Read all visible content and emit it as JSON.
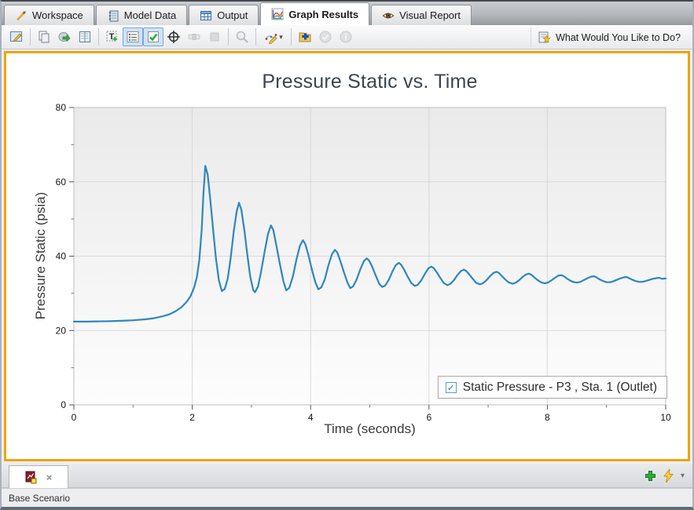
{
  "tabs": [
    {
      "label": "Workspace",
      "icon": "workspace-icon",
      "active": false
    },
    {
      "label": "Model Data",
      "icon": "model-data-icon",
      "active": false
    },
    {
      "label": "Output",
      "icon": "output-icon",
      "active": false
    },
    {
      "label": "Graph Results",
      "icon": "graph-results-icon",
      "active": true
    },
    {
      "label": "Visual Report",
      "icon": "visual-report-icon",
      "active": false
    }
  ],
  "toolbar": {
    "help_label": "What Would You Like to Do?",
    "icons": [
      {
        "name": "edit-graph-parameters-icon",
        "state": "normal"
      },
      {
        "name": "copy-icon",
        "state": "normal"
      },
      {
        "name": "export-data-icon",
        "state": "normal"
      },
      {
        "name": "report-columns-icon",
        "state": "normal"
      },
      {
        "name": "add-text-annotation-icon",
        "state": "normal"
      },
      {
        "name": "show-legend-icon",
        "state": "selected"
      },
      {
        "name": "show-checkboxes-icon",
        "state": "selected"
      },
      {
        "name": "crosshair-icon",
        "state": "normal"
      },
      {
        "name": "slider-icon",
        "state": "disabled"
      },
      {
        "name": "stop-icon",
        "state": "disabled"
      },
      {
        "name": "zoom-icon",
        "state": "disabled"
      },
      {
        "name": "format-curve-icon",
        "state": "normal"
      },
      {
        "name": "add-to-folder-icon",
        "state": "normal"
      },
      {
        "name": "accept-icon",
        "state": "disabled"
      },
      {
        "name": "info-icon",
        "state": "disabled"
      }
    ]
  },
  "chart_data": {
    "type": "line",
    "title": "Pressure Static vs. Time",
    "xlabel": "Time (seconds)",
    "ylabel": "Pressure Static (psia)",
    "xlim": [
      0,
      10
    ],
    "ylim": [
      0,
      80
    ],
    "xticks": [
      0,
      2,
      4,
      6,
      8,
      10
    ],
    "xminor": [
      1,
      3,
      5,
      7,
      9
    ],
    "yticks": [
      0,
      20,
      40,
      60,
      80
    ],
    "yminor": [
      10,
      30,
      50,
      70
    ],
    "xgrid": [
      2,
      4,
      6,
      8
    ],
    "ygrid": [
      20,
      40,
      60
    ],
    "grid_on": true,
    "legend_position": "bottom-right",
    "colors": {
      "line": "#2e86be",
      "grid": "#d9d9d9",
      "frame": "#bfbfbf",
      "accent_border": "#f0a30c"
    },
    "series": [
      {
        "name": "Static Pressure - P3 , Sta. 1 (Outlet)",
        "checked": true,
        "points": [
          [
            0,
            22.4
          ],
          [
            0.2,
            22.4
          ],
          [
            0.4,
            22.45
          ],
          [
            0.6,
            22.5
          ],
          [
            0.8,
            22.6
          ],
          [
            1.0,
            22.75
          ],
          [
            1.2,
            23.0
          ],
          [
            1.35,
            23.3
          ],
          [
            1.5,
            23.8
          ],
          [
            1.62,
            24.4
          ],
          [
            1.72,
            25.2
          ],
          [
            1.82,
            26.3
          ],
          [
            1.9,
            27.6
          ],
          [
            1.97,
            29.2
          ],
          [
            2.03,
            31.5
          ],
          [
            2.08,
            34.5
          ],
          [
            2.12,
            39.0
          ],
          [
            2.16,
            47.0
          ],
          [
            2.19,
            57.0
          ],
          [
            2.22,
            64.3
          ],
          [
            2.26,
            62.0
          ],
          [
            2.3,
            56.0
          ],
          [
            2.35,
            47.5
          ],
          [
            2.4,
            39.5
          ],
          [
            2.45,
            33.5
          ],
          [
            2.5,
            30.6
          ],
          [
            2.55,
            31.2
          ],
          [
            2.6,
            34.0
          ],
          [
            2.65,
            39.5
          ],
          [
            2.7,
            46.5
          ],
          [
            2.75,
            52.0
          ],
          [
            2.79,
            54.4
          ],
          [
            2.83,
            52.5
          ],
          [
            2.88,
            47.0
          ],
          [
            2.93,
            40.5
          ],
          [
            2.98,
            34.5
          ],
          [
            3.03,
            30.9
          ],
          [
            3.06,
            30.3
          ],
          [
            3.11,
            31.8
          ],
          [
            3.16,
            35.5
          ],
          [
            3.22,
            41.0
          ],
          [
            3.28,
            46.0
          ],
          [
            3.33,
            48.3
          ],
          [
            3.37,
            47.0
          ],
          [
            3.42,
            43.0
          ],
          [
            3.48,
            38.0
          ],
          [
            3.54,
            33.2
          ],
          [
            3.59,
            30.8
          ],
          [
            3.64,
            31.5
          ],
          [
            3.7,
            34.5
          ],
          [
            3.76,
            39.0
          ],
          [
            3.82,
            42.8
          ],
          [
            3.87,
            44.3
          ],
          [
            3.91,
            43.3
          ],
          [
            3.96,
            40.5
          ],
          [
            4.02,
            36.5
          ],
          [
            4.08,
            33.0
          ],
          [
            4.13,
            31.1
          ],
          [
            4.18,
            31.6
          ],
          [
            4.24,
            33.8
          ],
          [
            4.3,
            37.5
          ],
          [
            4.36,
            40.5
          ],
          [
            4.41,
            41.7
          ],
          [
            4.45,
            41.0
          ],
          [
            4.5,
            38.8
          ],
          [
            4.56,
            35.8
          ],
          [
            4.62,
            33.0
          ],
          [
            4.67,
            31.4
          ],
          [
            4.72,
            31.9
          ],
          [
            4.78,
            33.8
          ],
          [
            4.84,
            36.5
          ],
          [
            4.9,
            38.7
          ],
          [
            4.95,
            39.4
          ],
          [
            4.99,
            38.8
          ],
          [
            5.04,
            37.2
          ],
          [
            5.1,
            34.8
          ],
          [
            5.16,
            32.6
          ],
          [
            5.21,
            31.7
          ],
          [
            5.26,
            32.1
          ],
          [
            5.32,
            33.6
          ],
          [
            5.38,
            35.8
          ],
          [
            5.44,
            37.6
          ],
          [
            5.49,
            38.2
          ],
          [
            5.53,
            37.7
          ],
          [
            5.58,
            36.4
          ],
          [
            5.64,
            34.5
          ],
          [
            5.7,
            32.8
          ],
          [
            5.76,
            32.0
          ],
          [
            5.81,
            32.3
          ],
          [
            5.87,
            33.5
          ],
          [
            5.93,
            35.2
          ],
          [
            5.99,
            36.7
          ],
          [
            6.04,
            37.2
          ],
          [
            6.08,
            36.8
          ],
          [
            6.13,
            35.7
          ],
          [
            6.19,
            34.2
          ],
          [
            6.25,
            32.8
          ],
          [
            6.31,
            32.2
          ],
          [
            6.36,
            32.5
          ],
          [
            6.42,
            33.5
          ],
          [
            6.48,
            34.9
          ],
          [
            6.54,
            36.0
          ],
          [
            6.59,
            36.4
          ],
          [
            6.63,
            36.0
          ],
          [
            6.68,
            35.1
          ],
          [
            6.74,
            33.9
          ],
          [
            6.8,
            32.8
          ],
          [
            6.86,
            32.4
          ],
          [
            6.91,
            32.7
          ],
          [
            6.97,
            33.5
          ],
          [
            7.03,
            34.6
          ],
          [
            7.09,
            35.5
          ],
          [
            7.14,
            35.8
          ],
          [
            7.18,
            35.5
          ],
          [
            7.23,
            34.7
          ],
          [
            7.29,
            33.7
          ],
          [
            7.35,
            32.9
          ],
          [
            7.41,
            32.6
          ],
          [
            7.46,
            32.8
          ],
          [
            7.52,
            33.5
          ],
          [
            7.58,
            34.4
          ],
          [
            7.64,
            35.1
          ],
          [
            7.69,
            35.3
          ],
          [
            7.73,
            35.0
          ],
          [
            7.78,
            34.3
          ],
          [
            7.84,
            33.5
          ],
          [
            7.9,
            32.9
          ],
          [
            7.96,
            32.7
          ],
          [
            8.01,
            32.9
          ],
          [
            8.07,
            33.5
          ],
          [
            8.13,
            34.2
          ],
          [
            8.19,
            34.8
          ],
          [
            8.24,
            34.9
          ],
          [
            8.28,
            34.6
          ],
          [
            8.33,
            34.0
          ],
          [
            8.39,
            33.4
          ],
          [
            8.45,
            33.0
          ],
          [
            8.51,
            32.9
          ],
          [
            8.56,
            33.1
          ],
          [
            8.62,
            33.6
          ],
          [
            8.68,
            34.1
          ],
          [
            8.74,
            34.5
          ],
          [
            8.79,
            34.6
          ],
          [
            8.83,
            34.3
          ],
          [
            8.88,
            33.8
          ],
          [
            8.94,
            33.3
          ],
          [
            9.0,
            33.0
          ],
          [
            9.06,
            33.0
          ],
          [
            9.11,
            33.2
          ],
          [
            9.17,
            33.6
          ],
          [
            9.23,
            34.0
          ],
          [
            9.29,
            34.3
          ],
          [
            9.34,
            34.4
          ],
          [
            9.38,
            34.1
          ],
          [
            9.43,
            33.7
          ],
          [
            9.49,
            33.3
          ],
          [
            9.55,
            33.1
          ],
          [
            9.61,
            33.1
          ],
          [
            9.66,
            33.3
          ],
          [
            9.72,
            33.6
          ],
          [
            9.78,
            33.9
          ],
          [
            9.84,
            34.1
          ],
          [
            9.89,
            34.2
          ],
          [
            9.94,
            33.9
          ],
          [
            10.0,
            34.0
          ]
        ]
      }
    ]
  },
  "legend": {
    "label": "Static Pressure - P3 , Sta. 1 (Outlet)",
    "check_glyph": "✓"
  },
  "doc_tabs": {
    "close_glyph": "×"
  },
  "statusbar": {
    "text": "Base Scenario"
  }
}
